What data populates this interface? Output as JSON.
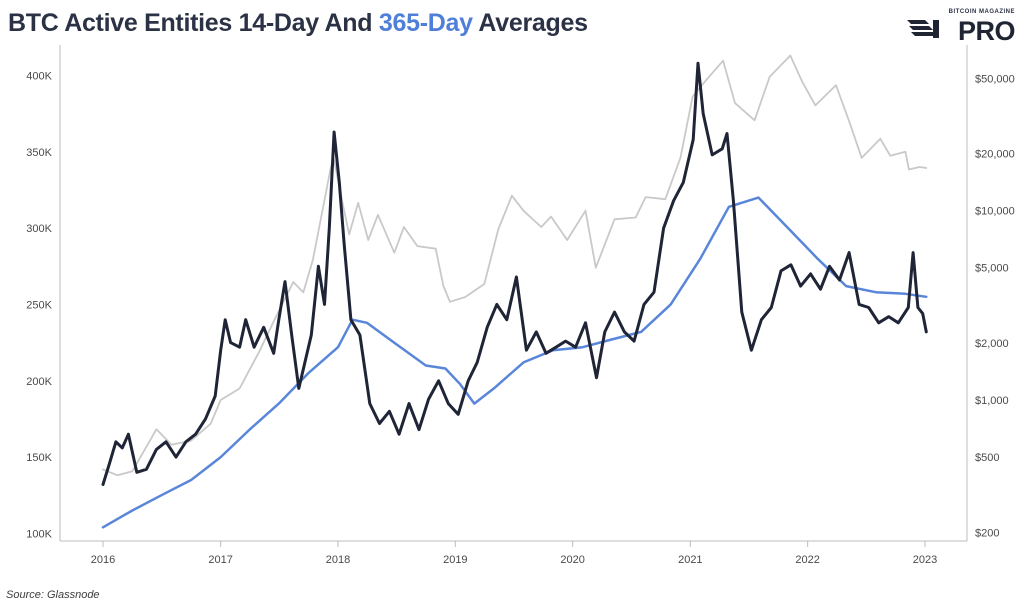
{
  "title": {
    "part1": "BTC Active Entities 14-Day And",
    "part2": "365-Day",
    "part3": "Averages"
  },
  "logo": {
    "small": "BITCOIN MAGAZINE",
    "big": "PRO",
    "icon": "stripes-logo-icon"
  },
  "source": "Source: Glassnode",
  "colors": {
    "active_14d": "#1f2536",
    "active_365d": "#5a86da",
    "price": "#c9c9c9",
    "title_highlight": "#4f7fd8"
  },
  "chart_data": {
    "type": "line",
    "title": "BTC Active Entities 14-Day And 365-Day Averages",
    "x_ticks": [
      "2016",
      "2017",
      "2018",
      "2019",
      "2020",
      "2021",
      "2022",
      "2023"
    ],
    "y_left": {
      "ticks": [
        "100K",
        "150K",
        "200K",
        "250K",
        "300K",
        "350K",
        "400K"
      ],
      "range": [
        95000,
        420000
      ]
    },
    "y_right": {
      "scale": "log",
      "ticks": [
        "$200",
        "$500",
        "$1,000",
        "$2,000",
        "$5,000",
        "$10,000",
        "$20,000",
        "$50,000"
      ],
      "range": [
        180,
        75000
      ]
    },
    "grid": false,
    "series": [
      {
        "axis": "left",
        "points": [
          [
            "2016-01-01",
            132000
          ],
          [
            "2016-01-20",
            145000
          ],
          [
            "2016-02-10",
            160000
          ],
          [
            "2016-03-01",
            156000
          ],
          [
            "2016-03-20",
            165000
          ],
          [
            "2016-04-15",
            140000
          ],
          [
            "2016-05-15",
            142000
          ],
          [
            "2016-06-15",
            155000
          ],
          [
            "2016-07-15",
            160000
          ],
          [
            "2016-08-15",
            150000
          ],
          [
            "2016-09-15",
            160000
          ],
          [
            "2016-10-15",
            165000
          ],
          [
            "2016-11-15",
            175000
          ],
          [
            "2016-12-15",
            190000
          ],
          [
            "2017-01-01",
            220000
          ],
          [
            "2017-01-15",
            240000
          ],
          [
            "2017-02-01",
            225000
          ],
          [
            "2017-03-01",
            222000
          ],
          [
            "2017-03-20",
            240000
          ],
          [
            "2017-04-15",
            222000
          ],
          [
            "2017-05-15",
            235000
          ],
          [
            "2017-06-15",
            218000
          ],
          [
            "2017-07-01",
            240000
          ],
          [
            "2017-07-20",
            265000
          ],
          [
            "2017-08-10",
            230000
          ],
          [
            "2017-09-01",
            195000
          ],
          [
            "2017-09-20",
            212000
          ],
          [
            "2017-10-10",
            230000
          ],
          [
            "2017-11-01",
            275000
          ],
          [
            "2017-11-20",
            250000
          ],
          [
            "2017-12-05",
            300000
          ],
          [
            "2017-12-20",
            363000
          ],
          [
            "2018-01-05",
            330000
          ],
          [
            "2018-01-20",
            290000
          ],
          [
            "2018-02-10",
            240000
          ],
          [
            "2018-03-10",
            230000
          ],
          [
            "2018-04-10",
            185000
          ],
          [
            "2018-05-10",
            172000
          ],
          [
            "2018-06-10",
            180000
          ],
          [
            "2018-07-10",
            165000
          ],
          [
            "2018-08-10",
            185000
          ],
          [
            "2018-09-10",
            168000
          ],
          [
            "2018-10-10",
            188000
          ],
          [
            "2018-11-10",
            200000
          ],
          [
            "2018-12-10",
            185000
          ],
          [
            "2019-01-10",
            178000
          ],
          [
            "2019-02-10",
            200000
          ],
          [
            "2019-03-10",
            212000
          ],
          [
            "2019-04-10",
            235000
          ],
          [
            "2019-05-10",
            250000
          ],
          [
            "2019-06-10",
            240000
          ],
          [
            "2019-07-10",
            268000
          ],
          [
            "2019-08-10",
            220000
          ],
          [
            "2019-09-10",
            232000
          ],
          [
            "2019-10-10",
            218000
          ],
          [
            "2019-11-10",
            222000
          ],
          [
            "2019-12-10",
            226000
          ],
          [
            "2020-01-10",
            222000
          ],
          [
            "2020-02-10",
            238000
          ],
          [
            "2020-03-15",
            202000
          ],
          [
            "2020-04-10",
            232000
          ],
          [
            "2020-05-10",
            245000
          ],
          [
            "2020-06-10",
            232000
          ],
          [
            "2020-07-10",
            226000
          ],
          [
            "2020-08-10",
            250000
          ],
          [
            "2020-09-10",
            258000
          ],
          [
            "2020-10-10",
            300000
          ],
          [
            "2020-11-10",
            318000
          ],
          [
            "2020-12-10",
            330000
          ],
          [
            "2021-01-10",
            358000
          ],
          [
            "2021-01-25",
            408000
          ],
          [
            "2021-02-10",
            375000
          ],
          [
            "2021-03-10",
            348000
          ],
          [
            "2021-04-10",
            352000
          ],
          [
            "2021-04-25",
            362000
          ],
          [
            "2021-05-15",
            318000
          ],
          [
            "2021-06-10",
            245000
          ],
          [
            "2021-07-10",
            220000
          ],
          [
            "2021-08-10",
            240000
          ],
          [
            "2021-09-10",
            248000
          ],
          [
            "2021-10-10",
            272000
          ],
          [
            "2021-11-10",
            276000
          ],
          [
            "2021-12-10",
            262000
          ],
          [
            "2022-01-10",
            270000
          ],
          [
            "2022-02-10",
            260000
          ],
          [
            "2022-03-10",
            275000
          ],
          [
            "2022-04-10",
            266000
          ],
          [
            "2022-05-10",
            284000
          ],
          [
            "2022-06-10",
            250000
          ],
          [
            "2022-07-10",
            248000
          ],
          [
            "2022-08-10",
            238000
          ],
          [
            "2022-09-10",
            242000
          ],
          [
            "2022-10-10",
            238000
          ],
          [
            "2022-11-10",
            248000
          ],
          [
            "2022-11-25",
            284000
          ],
          [
            "2022-12-10",
            248000
          ],
          [
            "2022-12-25",
            244000
          ],
          [
            "2023-01-05",
            232000
          ]
        ]
      },
      {
        "axis": "left",
        "points": [
          [
            "2016-01-01",
            104000
          ],
          [
            "2016-04-01",
            115000
          ],
          [
            "2016-07-01",
            125000
          ],
          [
            "2016-10-01",
            135000
          ],
          [
            "2017-01-01",
            150000
          ],
          [
            "2017-04-01",
            168000
          ],
          [
            "2017-07-01",
            185000
          ],
          [
            "2017-10-01",
            205000
          ],
          [
            "2018-01-01",
            222000
          ],
          [
            "2018-02-15",
            240000
          ],
          [
            "2018-04-01",
            238000
          ],
          [
            "2018-07-01",
            224000
          ],
          [
            "2018-10-01",
            210000
          ],
          [
            "2018-12-01",
            208000
          ],
          [
            "2019-01-15",
            198000
          ],
          [
            "2019-03-01",
            185000
          ],
          [
            "2019-05-01",
            195000
          ],
          [
            "2019-08-01",
            212000
          ],
          [
            "2019-11-01",
            220000
          ],
          [
            "2020-02-01",
            222000
          ],
          [
            "2020-05-01",
            227000
          ],
          [
            "2020-08-01",
            232000
          ],
          [
            "2020-11-01",
            250000
          ],
          [
            "2021-02-01",
            280000
          ],
          [
            "2021-05-01",
            314000
          ],
          [
            "2021-08-01",
            320000
          ],
          [
            "2021-11-01",
            300000
          ],
          [
            "2022-02-01",
            280000
          ],
          [
            "2022-05-01",
            262000
          ],
          [
            "2022-08-01",
            258000
          ],
          [
            "2022-11-01",
            257000
          ],
          [
            "2023-01-05",
            255000
          ]
        ]
      },
      {
        "axis": "right",
        "points": [
          [
            "2016-01-01",
            430
          ],
          [
            "2016-02-15",
            400
          ],
          [
            "2016-04-01",
            420
          ],
          [
            "2016-06-15",
            700
          ],
          [
            "2016-08-01",
            580
          ],
          [
            "2016-10-01",
            610
          ],
          [
            "2016-12-01",
            750
          ],
          [
            "2017-01-01",
            1000
          ],
          [
            "2017-03-01",
            1150
          ],
          [
            "2017-05-01",
            1800
          ],
          [
            "2017-06-15",
            2600
          ],
          [
            "2017-08-15",
            4200
          ],
          [
            "2017-09-15",
            3700
          ],
          [
            "2017-10-15",
            5500
          ],
          [
            "2017-12-10",
            17000
          ],
          [
            "2017-12-20",
            18500
          ],
          [
            "2018-01-15",
            11000
          ],
          [
            "2018-02-05",
            7500
          ],
          [
            "2018-03-05",
            11000
          ],
          [
            "2018-04-05",
            7000
          ],
          [
            "2018-05-05",
            9500
          ],
          [
            "2018-06-25",
            6000
          ],
          [
            "2018-07-25",
            8200
          ],
          [
            "2018-09-05",
            6500
          ],
          [
            "2018-11-01",
            6300
          ],
          [
            "2018-11-25",
            4000
          ],
          [
            "2018-12-15",
            3300
          ],
          [
            "2019-02-01",
            3500
          ],
          [
            "2019-04-01",
            4100
          ],
          [
            "2019-05-15",
            8000
          ],
          [
            "2019-06-26",
            12000
          ],
          [
            "2019-08-01",
            10000
          ],
          [
            "2019-09-25",
            8200
          ],
          [
            "2019-10-26",
            9300
          ],
          [
            "2019-12-15",
            7000
          ],
          [
            "2020-02-10",
            10000
          ],
          [
            "2020-03-13",
            5000
          ],
          [
            "2020-05-10",
            9000
          ],
          [
            "2020-07-15",
            9200
          ],
          [
            "2020-08-15",
            11800
          ],
          [
            "2020-10-15",
            11500
          ],
          [
            "2020-12-01",
            19000
          ],
          [
            "2021-01-08",
            40000
          ],
          [
            "2021-02-15",
            48000
          ],
          [
            "2021-04-13",
            62000
          ],
          [
            "2021-05-20",
            37000
          ],
          [
            "2021-07-20",
            30000
          ],
          [
            "2021-09-05",
            51000
          ],
          [
            "2021-11-08",
            66000
          ],
          [
            "2021-12-15",
            48000
          ],
          [
            "2022-01-25",
            36000
          ],
          [
            "2022-03-30",
            46000
          ],
          [
            "2022-05-12",
            29000
          ],
          [
            "2022-06-18",
            19000
          ],
          [
            "2022-08-15",
            24000
          ],
          [
            "2022-09-15",
            19500
          ],
          [
            "2022-11-01",
            20500
          ],
          [
            "2022-11-12",
            16500
          ],
          [
            "2022-12-15",
            17000
          ],
          [
            "2023-01-05",
            16800
          ]
        ]
      }
    ]
  }
}
